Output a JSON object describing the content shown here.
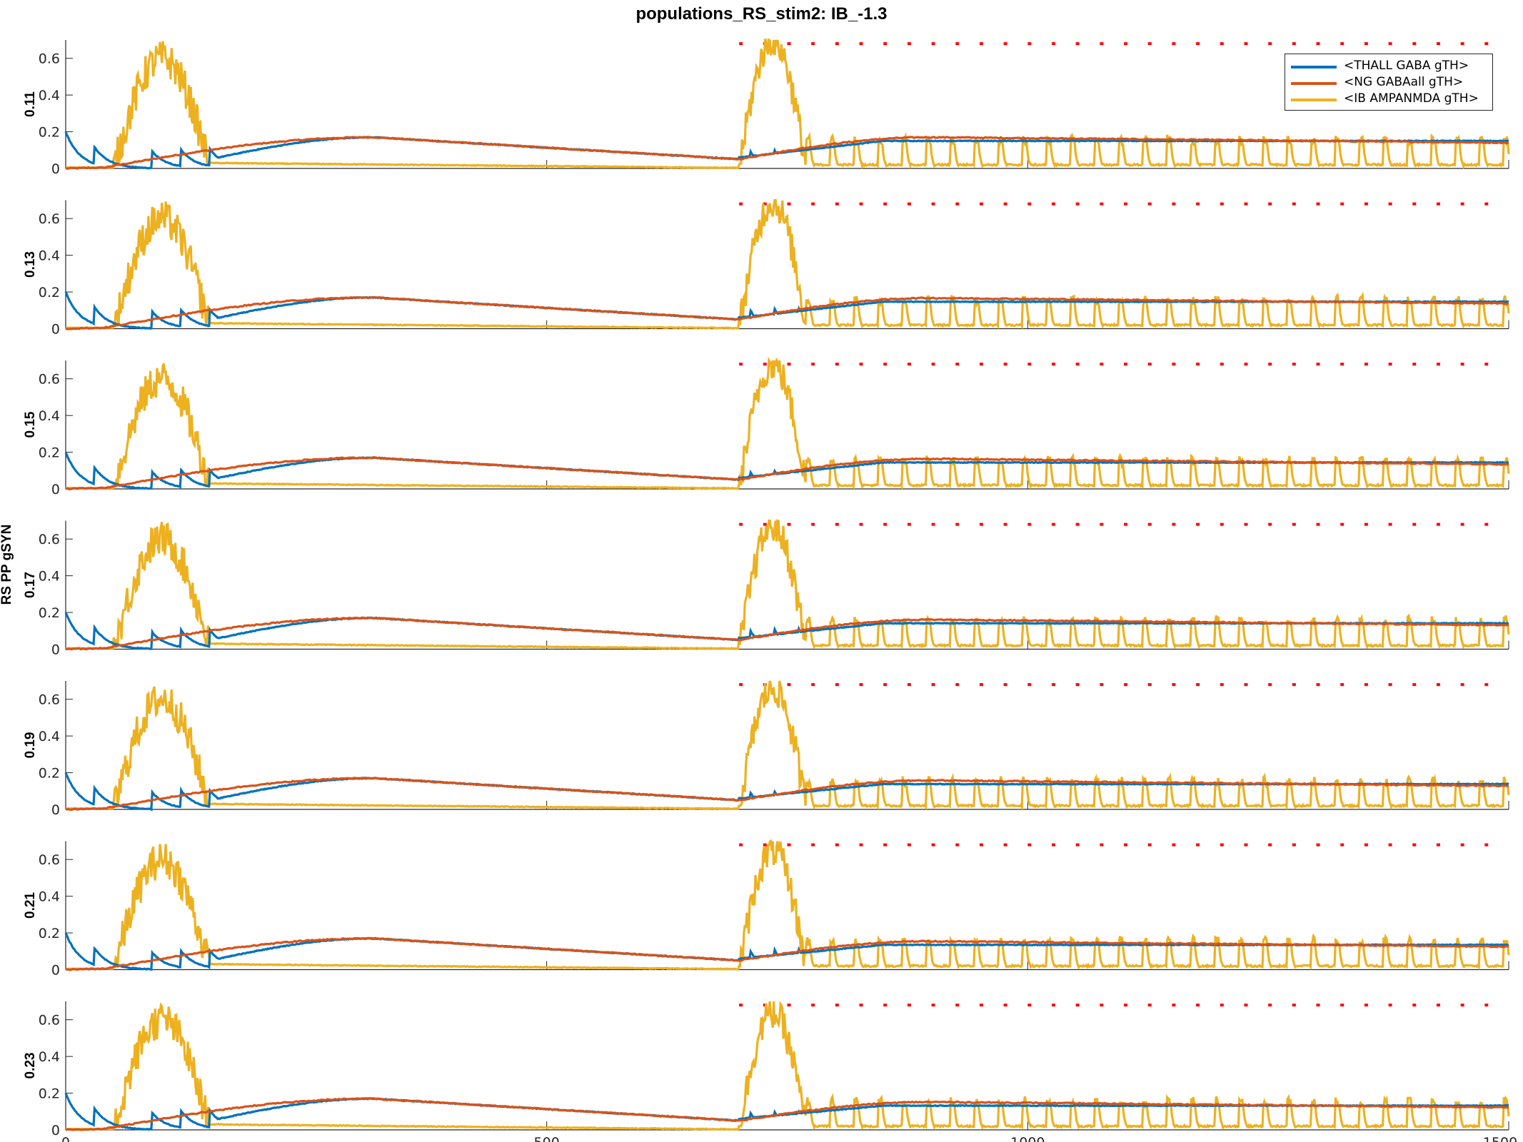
{
  "chart_data": {
    "type": "line",
    "title": "populations_RS_stim2: IB_-1.3",
    "ylabel": "RS PP gSYN",
    "xlim": [
      0,
      1500
    ],
    "ylim": [
      0,
      0.7
    ],
    "x_ticks": [
      "0",
      "500",
      "1000",
      "1500"
    ],
    "y_ticks": [
      "0",
      "0.2",
      "0.4",
      "0.6"
    ],
    "legend_position": "top-right",
    "colors": {
      "thall": "#0072BD",
      "ng": "#D95319",
      "ib": "#EDB120",
      "marker": "#FF0000"
    },
    "series": [
      {
        "name": "<THALL GABA gTH>",
        "color": "#0072BD"
      },
      {
        "name": "<NG GABAall gTH>",
        "color": "#D95319"
      },
      {
        "name": "<IB AMPANMDA gTH>",
        "color": "#EDB120"
      }
    ],
    "panels": [
      {
        "label": "0.11"
      },
      {
        "label": "0.13"
      },
      {
        "label": "0.15"
      },
      {
        "label": "0.17"
      },
      {
        "label": "0.19"
      },
      {
        "label": "0.21"
      },
      {
        "label": "0.23"
      }
    ],
    "stimulus_markers_start": 700,
    "stimulus_markers_end": 1480,
    "stimulus_marker_y": 0.68
  }
}
